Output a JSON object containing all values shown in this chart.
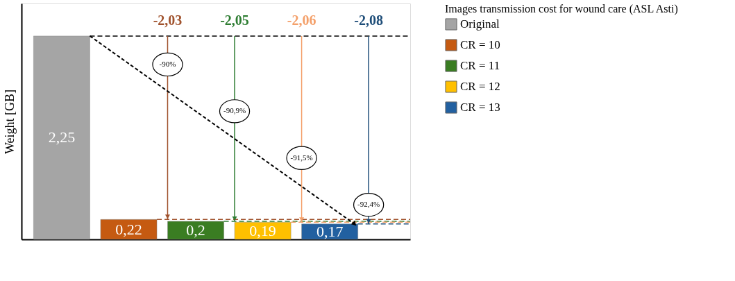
{
  "chart_data": {
    "type": "bar",
    "ylabel": "Weight [GB]",
    "legend_title": "Images transmission cost for wound care (ASL Asti)",
    "legend": "right",
    "stacked": true,
    "categories": [
      null,
      null,
      null,
      null,
      null
    ],
    "series": [
      {
        "name": "Original",
        "color": "#a5a5a5",
        "values": [
          2.25,
          null,
          null,
          null,
          null
        ],
        "value_labels": [
          "2,25",
          null,
          null,
          null,
          null
        ]
      },
      {
        "name": "CR = 10",
        "color": "#c55a11",
        "values": [
          null,
          0.22,
          null,
          null,
          null
        ],
        "value_labels": [
          null,
          "0,22",
          null,
          null,
          null
        ]
      },
      {
        "name": "CR = 11",
        "color": "#3a7d22",
        "values": [
          null,
          null,
          0.2,
          null,
          null
        ],
        "value_labels": [
          null,
          null,
          "0,2",
          null,
          null
        ]
      },
      {
        "name": "CR = 12",
        "color": "#ffc000",
        "values": [
          null,
          null,
          null,
          0.19,
          null
        ],
        "value_labels": [
          null,
          null,
          null,
          "0,19",
          null
        ]
      },
      {
        "name": "CR = 13",
        "color": "#2260a0",
        "values": [
          null,
          null,
          null,
          null,
          0.17
        ],
        "value_labels": [
          null,
          null,
          null,
          null,
          "0,17"
        ]
      }
    ],
    "ref_lines": [
      {
        "axis": "y",
        "value": 2.25,
        "color": "#000000",
        "line_style": "dashed"
      },
      {
        "axis": "y",
        "value": 0.22,
        "color": "#a0522d",
        "line_style": "dashed"
      },
      {
        "axis": "y",
        "value": 0.2,
        "color": "#2e7d32",
        "line_style": "dashed"
      },
      {
        "axis": "y",
        "value": 0.19,
        "color": "#f4a06a",
        "line_style": "dashed"
      },
      {
        "axis": "y",
        "value": 0.17,
        "color": "#1f4e79",
        "line_style": "dashed"
      }
    ],
    "annotations": [
      "-2,03",
      "-2,05",
      "-2,06",
      "-2,08",
      "-90%",
      "-90,9%",
      "-91,5%",
      "-92,4%"
    ]
  }
}
